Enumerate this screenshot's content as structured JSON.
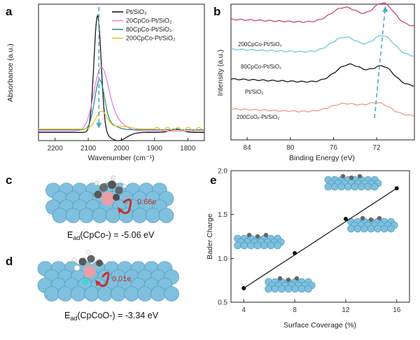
{
  "panels": {
    "a": "a",
    "b": "b",
    "c": "c",
    "d": "d",
    "e": "e"
  },
  "chart_data": [
    {
      "type": "line",
      "panel": "a",
      "xlabel": "Wavenumber (cm⁻¹)",
      "ylabel": "Absorbance (a.u.)",
      "xlim": [
        2250,
        1750
      ],
      "xticks": [
        2200,
        2100,
        2000,
        1900,
        1800
      ],
      "legend": [
        {
          "name": "Pt/SiO₂",
          "color": "#1a1a1a"
        },
        {
          "name": "20CpCo-Pt/SiO₂",
          "color": "#e87ee0"
        },
        {
          "name": "80CpCo-Pt/SiO₂",
          "color": "#2a8f8a"
        },
        {
          "name": "200CpCo-Pt/SiO₂",
          "color": "#e8c42a"
        }
      ],
      "series": [
        {
          "name": "Pt/SiO₂",
          "color": "#1a1a1a",
          "base": 0.06,
          "peaks": [
            {
              "x": 2072,
              "h": 0.86,
              "w": 11
            },
            {
              "x": 2010,
              "h": -0.06,
              "w": 25
            },
            {
              "x": 1835,
              "h": 0.025,
              "w": 18
            }
          ]
        },
        {
          "name": "20CpCo-Pt/SiO₂",
          "color": "#e87ee0",
          "base": 0.07,
          "peaks": [
            {
              "x": 2062,
              "h": 0.43,
              "w": 22
            },
            {
              "x": 2025,
              "h": 0.08,
              "w": 30
            }
          ]
        },
        {
          "name": "80CpCo-Pt/SiO₂",
          "color": "#2a8f8a",
          "base": 0.08,
          "peaks": [
            {
              "x": 2066,
              "h": 0.36,
              "w": 15
            },
            {
              "x": 2030,
              "h": 0.03,
              "w": 20
            }
          ]
        },
        {
          "name": "200CpCo-Pt/SiO₂",
          "color": "#e8c42a",
          "base": 0.085,
          "peaks": [
            {
              "x": 2060,
              "h": 0.13,
              "w": 17
            },
            {
              "x": 2000,
              "h": 0.02,
              "w": 25
            }
          ]
        }
      ],
      "arrow": {
        "x": 2068,
        "from": 0.98,
        "to": 0.1,
        "color": "#4fa7c9"
      }
    },
    {
      "type": "line",
      "panel": "b",
      "xlabel": "Binding Energy (eV)",
      "ylabel": "Intensity (a.u.)",
      "xlim": [
        85.5,
        68.5
      ],
      "xticks": [
        84,
        80,
        76,
        72
      ],
      "series": [
        {
          "name": "200CpCo-Pt/SiO₂",
          "label": "200CpCo-Pt/SiO₂",
          "color": "#c8467a",
          "offset": 0.86,
          "peaks": [
            {
              "x": 74.9,
              "h": 0.12,
              "w": 1.3
            },
            {
              "x": 71.4,
              "h": 0.16,
              "w": 1.0
            }
          ]
        },
        {
          "name": "80CpCo-Pt/SiO₂",
          "label": "80CpCo-Pt/SiO₂",
          "color": "#6fc8de",
          "offset": 0.64,
          "peaks": [
            {
              "x": 74.9,
              "h": 0.12,
              "w": 1.3
            },
            {
              "x": 71.4,
              "h": 0.14,
              "w": 1.0
            }
          ]
        },
        {
          "name": "Pt/SiO₂",
          "label": "Pt/SiO₂",
          "color": "#1a1a1a",
          "offset": 0.42,
          "peaks": [
            {
              "x": 74.5,
              "h": 0.14,
              "w": 1.3
            },
            {
              "x": 71.4,
              "h": 0.13,
              "w": 1.0
            }
          ]
        },
        {
          "name": "200CoOₓ-Pt/SiO₂",
          "label": "200CoOₓ-Pt/SiO₂",
          "color": "#ef9c8a",
          "offset": 0.2,
          "peaks": [
            {
              "x": 74.9,
              "h": 0.07,
              "w": 1.4
            },
            {
              "x": 71.8,
              "h": 0.08,
              "w": 1.1
            }
          ]
        }
      ],
      "arrow": {
        "from": [
          72.2,
          0.16
        ],
        "to": [
          71.2,
          0.98
        ],
        "color": "#4fa7c9"
      }
    },
    {
      "type": "scatter",
      "panel": "e",
      "xlabel": "Surface Coverage (%)",
      "ylabel": "Bader Charge",
      "x": [
        4,
        8,
        12,
        16
      ],
      "y": [
        0.66,
        1.06,
        1.45,
        1.8
      ],
      "xlim": [
        3,
        17
      ],
      "ylim": [
        0.5,
        2.0
      ],
      "xticks": [
        4,
        8,
        12,
        16
      ],
      "yticks": [
        0.5,
        1.0,
        1.5,
        2.0
      ],
      "ytick_labels": [
        "0.5",
        "1.0",
        "1.5",
        "2.0"
      ]
    }
  ],
  "c": {
    "annotation": "0.66e",
    "energy_label": "E",
    "energy_sub": "ad",
    "energy_value": "(CpCo-) = -5.06 eV"
  },
  "d": {
    "annotation": "0.01e",
    "energy_label": "E",
    "energy_sub": "ad",
    "energy_value": "(CpCoO-) = -3.34 eV"
  },
  "colors": {
    "sphere": "#7fc0de",
    "sphere_dark": "#3f8fb6",
    "arrow_red": "#c8322f",
    "co": "#e8a0a8",
    "carbon": "#555555"
  }
}
